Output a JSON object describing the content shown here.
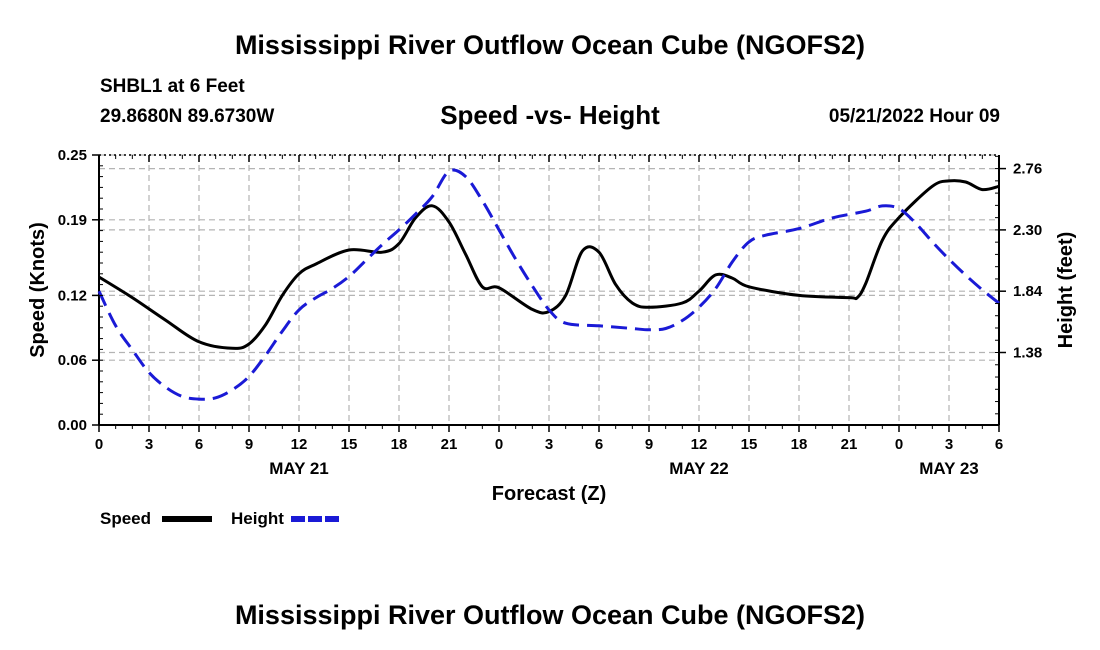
{
  "header": {
    "title": "Mississippi River Outflow Ocean Cube (NGOFS2)",
    "station": "SHBL1 at 6 Feet",
    "coords": "29.8680N  89.6730W",
    "subtitle": "Speed -vs- Height",
    "timestamp": "05/21/2022 Hour 09"
  },
  "footer": {
    "title": "Mississippi River Outflow Ocean Cube (NGOFS2)"
  },
  "legend": {
    "speed_label": "Speed",
    "height_label": "Height"
  },
  "colors": {
    "speed": "#000000",
    "height": "#1a1ad6",
    "grid": "#b4b4b4"
  },
  "chart_data": {
    "type": "line",
    "title": "Speed -vs- Height",
    "xlabel": "Forecast (Z)",
    "ylabel": "Speed (Knots)",
    "y2label": "Height (feet)",
    "x_range": [
      0,
      54
    ],
    "x_ticks": [
      0,
      3,
      6,
      9,
      12,
      15,
      18,
      21,
      24,
      27,
      30,
      33,
      36,
      39,
      42,
      45,
      48,
      51,
      54
    ],
    "x_tick_labels": [
      "0",
      "3",
      "6",
      "9",
      "12",
      "15",
      "18",
      "21",
      "0",
      "3",
      "6",
      "9",
      "12",
      "15",
      "18",
      "21",
      "0",
      "3",
      "6"
    ],
    "date_labels": [
      {
        "label": "MAY 21",
        "x": 12
      },
      {
        "label": "MAY 22",
        "x": 36
      },
      {
        "label": "MAY 23",
        "x": 51
      }
    ],
    "ylim": [
      0,
      0.25
    ],
    "y_ticks": [
      0.0,
      0.06,
      0.12,
      0.19,
      0.25
    ],
    "y_tick_labels": [
      "0.00",
      "0.06",
      "0.12",
      "0.19",
      "0.25"
    ],
    "y2lim": [
      0.836,
      2.862
    ],
    "y2_ticks": [
      1.38,
      1.84,
      2.3,
      2.76
    ],
    "y2_tick_labels": [
      "1.38",
      "1.84",
      "2.30",
      "2.76"
    ],
    "series": [
      {
        "name": "Speed",
        "axis": "left",
        "x": [
          0,
          2,
          4,
          6,
          8,
          9,
          10,
          11,
          12,
          13,
          15,
          17,
          18,
          19,
          20,
          21,
          22,
          23,
          24,
          26,
          27,
          28,
          29,
          30,
          31,
          32,
          33,
          35,
          36,
          37,
          38,
          39,
          42,
          45,
          45.5,
          46,
          47,
          48,
          50,
          51,
          52,
          53,
          54
        ],
        "values": [
          0.137,
          0.118,
          0.097,
          0.077,
          0.071,
          0.075,
          0.093,
          0.12,
          0.14,
          0.149,
          0.162,
          0.16,
          0.168,
          0.192,
          0.203,
          0.188,
          0.158,
          0.128,
          0.127,
          0.107,
          0.105,
          0.12,
          0.161,
          0.16,
          0.13,
          0.113,
          0.109,
          0.113,
          0.124,
          0.139,
          0.136,
          0.128,
          0.12,
          0.118,
          0.118,
          0.131,
          0.171,
          0.192,
          0.221,
          0.226,
          0.225,
          0.218,
          0.221
        ]
      },
      {
        "name": "Height",
        "axis": "right",
        "x": [
          0,
          1,
          2,
          3,
          4,
          5,
          6,
          7,
          8,
          9,
          10,
          11,
          12,
          13,
          14,
          15,
          16,
          17,
          18,
          19,
          20,
          21,
          22,
          23,
          24,
          25,
          26,
          27,
          28,
          30,
          32,
          33,
          34,
          35,
          36,
          37,
          38,
          39,
          40,
          42,
          44,
          46,
          47,
          48,
          49,
          50,
          51,
          52,
          53,
          54
        ],
        "values": [
          1.84,
          1.58,
          1.4,
          1.23,
          1.12,
          1.05,
          1.03,
          1.04,
          1.1,
          1.2,
          1.36,
          1.54,
          1.7,
          1.79,
          1.86,
          1.95,
          2.07,
          2.19,
          2.3,
          2.42,
          2.55,
          2.74,
          2.7,
          2.52,
          2.3,
          2.08,
          1.88,
          1.7,
          1.6,
          1.58,
          1.56,
          1.55,
          1.56,
          1.62,
          1.72,
          1.86,
          2.06,
          2.21,
          2.26,
          2.31,
          2.39,
          2.44,
          2.48,
          2.46,
          2.35,
          2.21,
          2.08,
          1.96,
          1.85,
          1.75
        ]
      }
    ]
  }
}
